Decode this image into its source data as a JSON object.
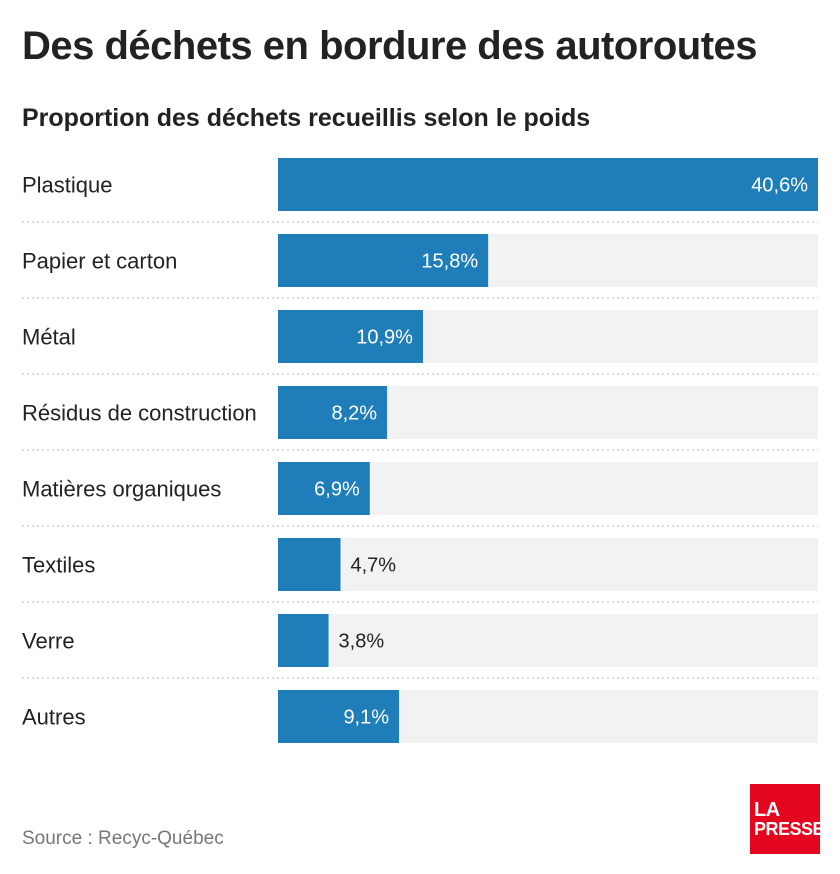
{
  "chart_data": {
    "type": "bar",
    "orientation": "horizontal",
    "title": "Des déchets en bordure des autoroutes",
    "subtitle": "Proportion des déchets recueillis selon le poids",
    "categories": [
      "Plastique",
      "Papier et carton",
      "Métal",
      "Résidus de construction",
      "Matières organiques",
      "Textiles",
      "Verre",
      "Autres"
    ],
    "values": [
      40.6,
      15.8,
      10.9,
      8.2,
      6.9,
      4.7,
      3.8,
      9.1
    ],
    "data_labels": [
      "40,6%",
      "15,8%",
      "10,9%",
      "8,2%",
      "6,9%",
      "4,7%",
      "3,8%",
      "9,1%"
    ],
    "xlim": [
      0,
      40.6
    ],
    "grid": false,
    "colors": {
      "bar": "#1f7eb9",
      "track": "#f2f2f2",
      "divider": "#c8c8c8"
    }
  },
  "footer": {
    "source": "Source : Recyc-Québec"
  },
  "logo": {
    "line1": "LA",
    "line2": "PRESSE",
    "color": "#e4051e"
  }
}
